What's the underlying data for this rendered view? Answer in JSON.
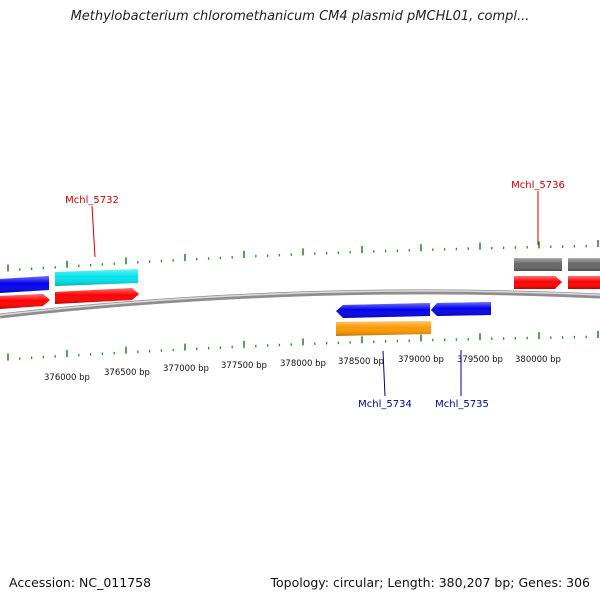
{
  "title": "Methylobacterium chloromethanicum CM4 plasmid pMCHL01, compl...",
  "accession_label": "Accession: NC_011758",
  "summary_label": "Topology: circular; Length: 380,207 bp; Genes: 306",
  "colors": {
    "backbone": "#9a9a9a",
    "tick": "#2e8b2e",
    "forward_label": "#cc0000",
    "reverse_label": "#00008b",
    "red": "#ff0000",
    "cyan": "#00e5ee",
    "blue": "#0000ee",
    "orange": "#ff9900",
    "gray": "#666666"
  },
  "ruler_labels": [
    "376000 bp",
    "376500 bp",
    "377000 bp",
    "377500 bp",
    "378000 bp",
    "378500 bp",
    "379000 bp",
    "379500 bp",
    "380000 bp"
  ],
  "gene_labels": {
    "forward": [
      "Mchl_5732",
      "Mchl_5736"
    ],
    "reverse": [
      "Mchl_5734",
      "Mchl_5735"
    ]
  }
}
